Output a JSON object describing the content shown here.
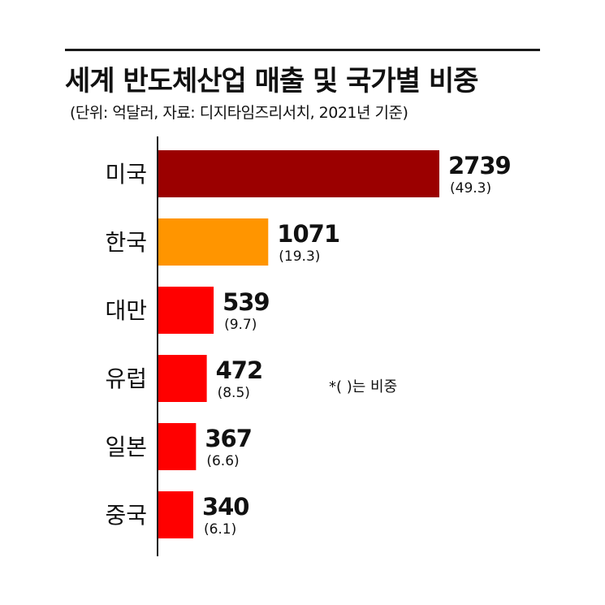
{
  "header": {
    "title": "세계 반도체산업 매출 및 국가별 비중",
    "subtitle": "(단위: 억달러, 자료: 디지타임즈리서치, 2021년 기준)"
  },
  "note": "*(   )는 비중",
  "chart_data": {
    "type": "bar",
    "orientation": "horizontal",
    "categories": [
      "미국",
      "한국",
      "대만",
      "유럽",
      "일본",
      "중국"
    ],
    "values": [
      2739,
      1071,
      539,
      472,
      367,
      340
    ],
    "shares": [
      "(49.3)",
      "(19.3)",
      "(9.7)",
      "(8.5)",
      "(6.6)",
      "(6.1)"
    ],
    "colors": [
      "#9b0000",
      "#ff9500",
      "#ff0000",
      "#ff0000",
      "#ff0000",
      "#ff0000"
    ],
    "grid": false,
    "legend": "none"
  }
}
